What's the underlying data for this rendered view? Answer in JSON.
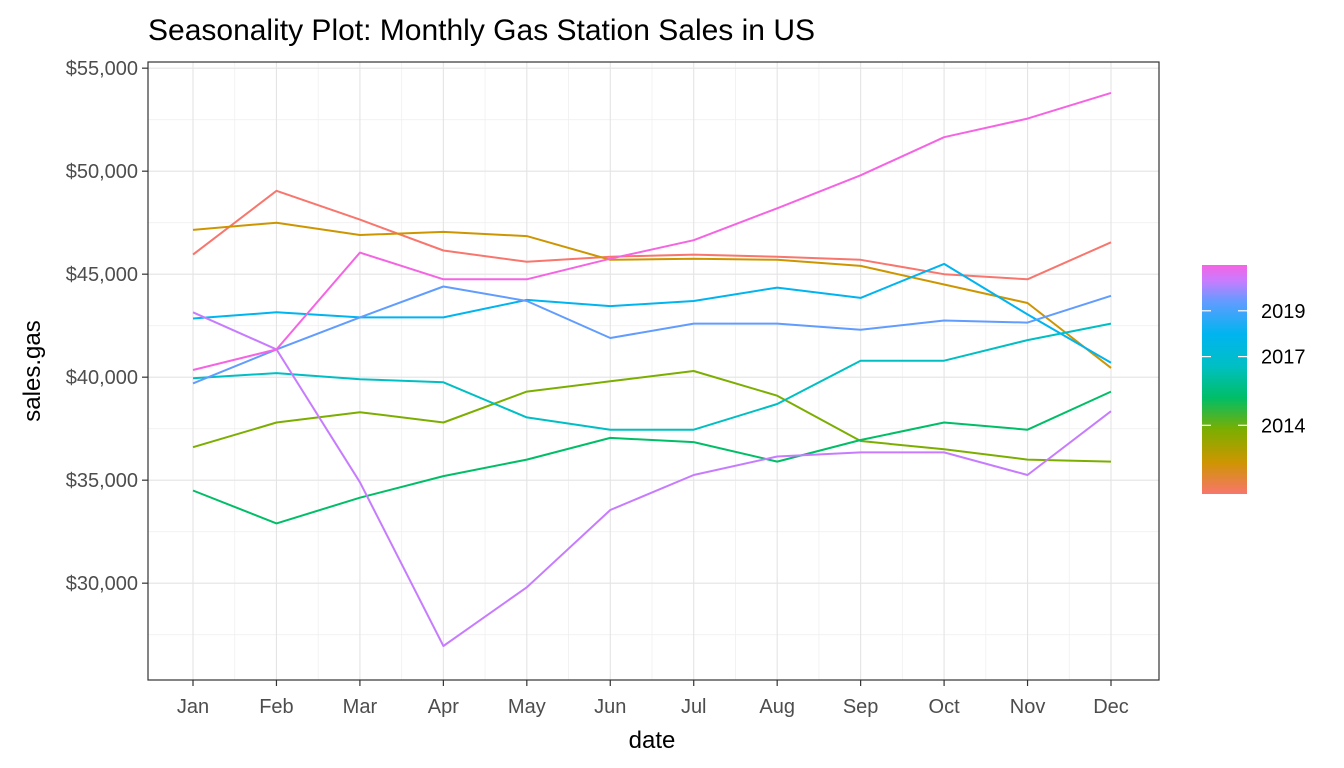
{
  "chart_data": {
    "type": "line",
    "title": "Seasonality Plot: Monthly Gas Station Sales in US",
    "xlabel": "date",
    "ylabel": "sales.gas",
    "categories": [
      "Jan",
      "Feb",
      "Mar",
      "Apr",
      "May",
      "Jun",
      "Jul",
      "Aug",
      "Sep",
      "Oct",
      "Nov",
      "Dec"
    ],
    "ylim": [
      25300,
      55300
    ],
    "y_ticks": [
      30000,
      35000,
      40000,
      45000,
      50000,
      55000
    ],
    "y_tick_labels": [
      "$30,000",
      "$35,000",
      "$40,000",
      "$45,000",
      "$50,000",
      "$55,000"
    ],
    "grid": true,
    "legend": {
      "type": "colorbar",
      "placement": "right",
      "range": [
        2011,
        2021
      ],
      "ticks": [
        2014,
        2017,
        2019
      ],
      "tick_labels": [
        "2014",
        "2017",
        "2019"
      ]
    },
    "series": [
      {
        "color": "#F8766D",
        "values": [
          45950,
          49050,
          47650,
          46150,
          45600,
          45850,
          45950,
          45850,
          45700,
          45000,
          44750,
          46550
        ]
      },
      {
        "color": "#CD9600",
        "values": [
          47150,
          47500,
          46900,
          47050,
          46850,
          45700,
          45750,
          45700,
          45400,
          44500,
          43600,
          40450
        ]
      },
      {
        "color": "#7CAE00",
        "values": [
          36600,
          37800,
          38300,
          37800,
          39300,
          39800,
          40300,
          39100,
          36900,
          36500,
          36000,
          35900
        ]
      },
      {
        "color": "#00BE67",
        "values": [
          34500,
          32900,
          34150,
          35200,
          36000,
          37050,
          36850,
          35900,
          36950,
          37800,
          37450,
          39300
        ]
      },
      {
        "color": "#00BFC4",
        "values": [
          39950,
          40200,
          39900,
          39750,
          38050,
          37450,
          37450,
          38700,
          40800,
          40800,
          41800,
          42600
        ]
      },
      {
        "color": "#00B4F0",
        "values": [
          42850,
          43150,
          42900,
          42900,
          43750,
          43450,
          43700,
          44350,
          43850,
          45500,
          43050,
          40700
        ]
      },
      {
        "color": "#619CFF",
        "values": [
          39700,
          41350,
          42900,
          44400,
          43700,
          41900,
          42600,
          42600,
          42300,
          42750,
          42650,
          43950
        ]
      },
      {
        "color": "#C77CFF",
        "values": [
          43150,
          41350,
          34900,
          26950,
          29800,
          33550,
          35250,
          36150,
          36350,
          36350,
          35250,
          38350
        ]
      },
      {
        "color": "#F564E3",
        "values": [
          40350,
          41350,
          46050,
          44750,
          44750,
          45750,
          46650,
          48200,
          49800,
          51650,
          52550,
          53800
        ]
      }
    ]
  }
}
